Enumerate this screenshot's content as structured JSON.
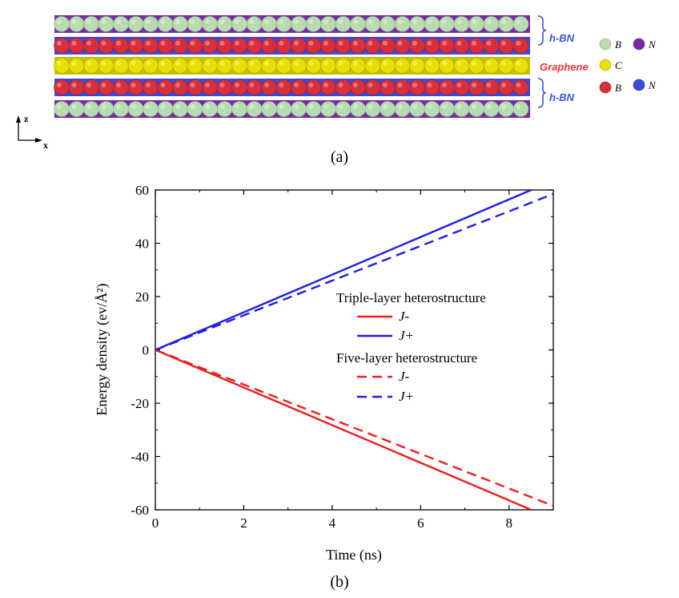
{
  "panel_a": {
    "label": "(a)",
    "layer_labels": {
      "top": "h-BN",
      "middle": "Graphene",
      "bottom": "h-BN"
    },
    "legend": [
      {
        "color": "#b8dcb0",
        "text": "B"
      },
      {
        "color": "#7a2aa8",
        "text": "N"
      },
      {
        "color": "#e8e000",
        "text": "C"
      },
      {
        "color": "#d8303a",
        "text": "B"
      },
      {
        "color": "#3b4bd8",
        "text": "N"
      }
    ],
    "axes": {
      "z": "z",
      "x": "x"
    },
    "colors": {
      "boron_green": "#b8dcb0",
      "nitrogen_purple": "#7a2aa8",
      "carbon_yellow": "#e8e000",
      "boron_red": "#d8303a",
      "nitrogen_blue": "#3b4bd8",
      "hbn_label": "#3a56d8",
      "graphene_label": "#e8333a"
    }
  },
  "chart_data": {
    "type": "line",
    "panel_label": "(b)",
    "xlabel": "Time (ns)",
    "ylabel": "Energy density (ev/Å²)",
    "xlim": [
      0,
      9
    ],
    "ylim": [
      -60,
      60
    ],
    "xticks": [
      0,
      2,
      4,
      6,
      8
    ],
    "yticks": [
      60,
      40,
      20,
      0,
      -20,
      -40,
      -60
    ],
    "legend_placement": "center-right",
    "legend_groups": [
      {
        "title": "Triple-layer heterostructure",
        "series": [
          "triple_jminus",
          "triple_jplus"
        ]
      },
      {
        "title": "Five-layer heterostructure",
        "series": [
          "five_jminus",
          "five_jplus"
        ]
      }
    ],
    "series": [
      {
        "id": "triple_jminus",
        "name": "J-",
        "color": "#ee1c1c",
        "dash": "solid",
        "x": [
          0,
          8.5
        ],
        "y": [
          0,
          -60
        ]
      },
      {
        "id": "triple_jplus",
        "name": "J+",
        "color": "#1c1cee",
        "dash": "solid",
        "x": [
          0,
          8.5
        ],
        "y": [
          0,
          60
        ]
      },
      {
        "id": "five_jminus",
        "name": "J-",
        "color": "#ee1c1c",
        "dash": "dashed",
        "x": [
          0,
          9
        ],
        "y": [
          0,
          -58.5
        ]
      },
      {
        "id": "five_jplus",
        "name": "J+",
        "color": "#1c1cee",
        "dash": "dashed",
        "x": [
          0,
          9
        ],
        "y": [
          0,
          58.5
        ]
      }
    ]
  }
}
